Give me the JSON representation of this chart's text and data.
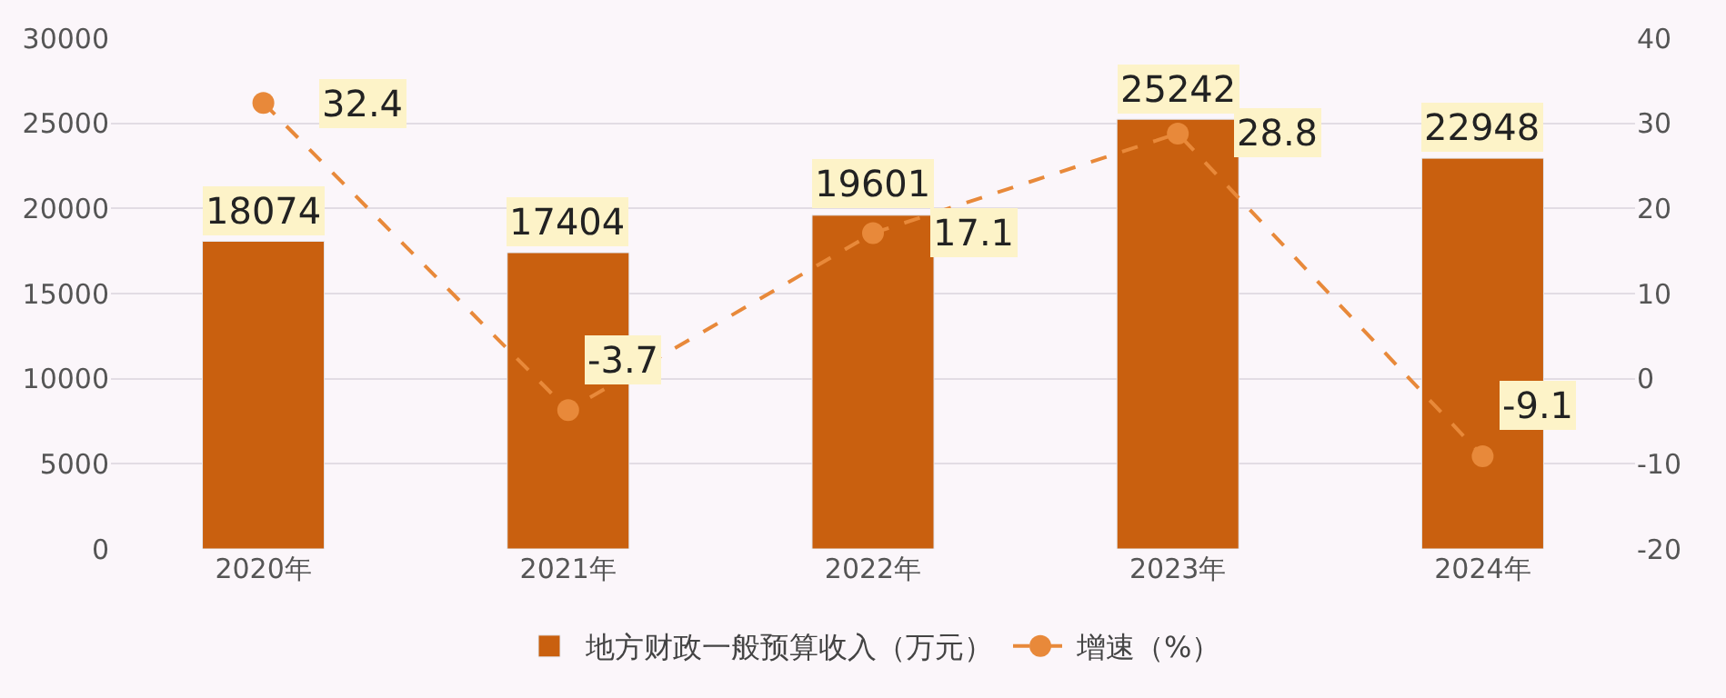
{
  "chart_data": {
    "type": "bar",
    "categories": [
      "2020年",
      "2021年",
      "2022年",
      "2023年",
      "2024年"
    ],
    "series": [
      {
        "name": "地方财政一般预算收入（万元）",
        "color": "#c9600f",
        "values": [
          18074,
          17404,
          19601,
          25242,
          22948
        ]
      },
      {
        "name": "增速（%）",
        "type": "line",
        "axis": "y2",
        "color": "#e8893a",
        "line_style": "dashed",
        "marker": "circle",
        "values": [
          32.4,
          -3.7,
          17.1,
          28.8,
          -9.1
        ]
      }
    ],
    "ylim": [
      0,
      30000
    ],
    "yticks": [
      0,
      5000,
      10000,
      15000,
      20000,
      25000,
      30000
    ],
    "y2lim": [
      -20,
      40
    ],
    "y2ticks": [
      -20,
      -10,
      0,
      10,
      20,
      30,
      40
    ],
    "data_labels": true,
    "grid": "y",
    "legend": "bottom"
  }
}
